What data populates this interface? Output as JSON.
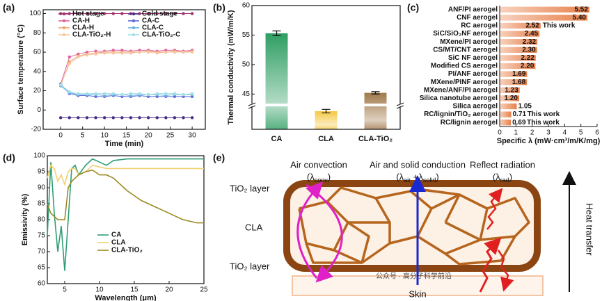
{
  "panel_labels": [
    "(a)",
    "(b)",
    "(c)",
    "(d)",
    "(e)"
  ],
  "chart_data": [
    {
      "type": "line",
      "x_label": "Time (min)",
      "y_label": "Surface temperature (°C)",
      "xlim": [
        -4,
        33
      ],
      "ylim": [
        -20,
        104
      ],
      "xticks": [
        0,
        5,
        10,
        15,
        20,
        25,
        30
      ],
      "yticks": [
        -20,
        0,
        20,
        40,
        60,
        80,
        100
      ],
      "markers": true,
      "legend": "upper center",
      "legend_columns": 2,
      "x": [
        0,
        2,
        4,
        6,
        8,
        10,
        12,
        14,
        16,
        18,
        20,
        22,
        24,
        26,
        28,
        30
      ],
      "series": [
        {
          "name": "Hot stage",
          "color": "#a3306f",
          "values": [
            100,
            100,
            100,
            100,
            100,
            100,
            100,
            100,
            100,
            100,
            100,
            100,
            100,
            100,
            100,
            100
          ]
        },
        {
          "name": "Cold stage",
          "color": "#4b2a8a",
          "values": [
            -8,
            -8,
            -8,
            -8,
            -8,
            -8,
            -8,
            -8,
            -8,
            -8,
            -8,
            -8,
            -8,
            -8,
            -8,
            -8
          ]
        },
        {
          "name": "CA-H",
          "color": "#e0609c",
          "values": [
            27,
            55,
            58,
            60,
            61,
            61,
            62,
            62,
            61,
            62,
            62,
            61,
            62,
            62,
            61,
            62
          ]
        },
        {
          "name": "CA-C",
          "color": "#5b6bd6",
          "values": [
            27,
            17,
            15,
            15,
            14,
            14,
            15,
            14,
            14,
            15,
            14,
            14,
            14,
            14,
            14,
            14
          ]
        },
        {
          "name": "CLA-H",
          "color": "#f0a070",
          "values": [
            25,
            50,
            56,
            58,
            59,
            60,
            60,
            60,
            60,
            60,
            61,
            60,
            60,
            61,
            60,
            61
          ]
        },
        {
          "name": "CLA-C",
          "color": "#6ab0e0",
          "values": [
            25,
            18,
            16,
            16,
            16,
            15,
            16,
            16,
            15,
            16,
            16,
            16,
            15,
            16,
            16,
            16
          ]
        },
        {
          "name": "CLA-TiO₂-H",
          "color": "#f5c8a0",
          "values": [
            26,
            48,
            55,
            57,
            58,
            59,
            59,
            59,
            59,
            60,
            60,
            59,
            60,
            60,
            60,
            60
          ]
        },
        {
          "name": "CLA-TiO₂-C",
          "color": "#a0e0e8",
          "values": [
            26,
            19,
            17,
            17,
            17,
            17,
            17,
            16,
            17,
            17,
            16,
            17,
            17,
            17,
            16,
            17
          ]
        }
      ]
    },
    {
      "type": "bar",
      "y_label": "Thermal conductivity (mW/m/K)",
      "ylim": [
        43.5,
        60
      ],
      "yticks": [
        45,
        50,
        55,
        60
      ],
      "axis_break": true,
      "categories": [
        "CA",
        "CLA",
        "CLA-TiO₂"
      ],
      "values": [
        55.3,
        42.1,
        45.2
      ],
      "errors": [
        0.4,
        0.3,
        0.2
      ],
      "colors": [
        "#2e9e62",
        "#f5c842",
        "#a0784a"
      ]
    },
    {
      "type": "hbar",
      "x_label": "Specific λ (mW·cm³/m/K/mg)",
      "xlim": [
        0,
        6
      ],
      "xticks": [
        0,
        1,
        2,
        3,
        4,
        5,
        6
      ],
      "color": "#e8804a",
      "categories": [
        "ANF/PI aerogel",
        "CNF aerogel",
        "RC aerogel",
        "SiC/SiO₂NF aerogel",
        "MXene/PI aerogel",
        "CS/MT/CNT aerogel",
        "SiC NF aerogel",
        "Modified CS aerogel",
        "PI/ANF aerogel",
        "MXene/PINF aerogel",
        "MXene/ANF/PI aerogel",
        "Silica nanotube aerogel",
        "Silica aerogel",
        "RC/lignin/TiO₂ aerogel",
        "RC/lignin aerogel"
      ],
      "values": [
        5.52,
        5.4,
        2.52,
        2.45,
        2.32,
        2.3,
        2.22,
        2.2,
        1.69,
        1.68,
        1.23,
        1.2,
        1.05,
        0.71,
        0.69
      ],
      "value_labels": [
        "5.52",
        "5.40",
        "2.52",
        "2.45",
        "2.32",
        "2.30",
        "2.22",
        "2.20",
        "1.69",
        "1.68",
        "1.23",
        "1.20",
        "1.05",
        "0.71",
        "0.69"
      ],
      "annotations": [
        null,
        null,
        "This work",
        null,
        null,
        null,
        null,
        null,
        null,
        null,
        null,
        null,
        null,
        "This work",
        "This work"
      ]
    },
    {
      "type": "line",
      "x_label": "Wavelength (μm)",
      "y_label": "Emissivity (%)",
      "xlim": [
        2.5,
        25
      ],
      "ylim": [
        60,
        100
      ],
      "xticks": [
        5,
        10,
        15,
        20,
        25
      ],
      "yticks": [
        60,
        65,
        70,
        75,
        80,
        85,
        90,
        95,
        100
      ],
      "legend": "lower left",
      "x": [
        2.5,
        3,
        3.5,
        4,
        4.5,
        5,
        5.5,
        6,
        6.5,
        7,
        8,
        9,
        10,
        11,
        12,
        14,
        16,
        18,
        20,
        22,
        24,
        25
      ],
      "series": [
        {
          "name": "CA",
          "color": "#2e9e74",
          "values": [
            75,
            98,
            82,
            70,
            78,
            64,
            80,
            96,
            97,
            94,
            97,
            99,
            98,
            97,
            98.5,
            99,
            99,
            99,
            99,
            99,
            99,
            99
          ]
        },
        {
          "name": "CLA",
          "color": "#f2d070",
          "values": [
            93,
            97,
            96,
            92,
            94,
            91,
            95,
            96,
            96,
            94,
            95,
            97,
            96.5,
            96,
            96,
            96,
            96,
            96,
            96,
            96,
            96,
            96
          ]
        },
        {
          "name": "CLA-TiO₂",
          "color": "#9a8a20",
          "values": [
            85,
            82,
            81,
            80,
            80,
            80,
            90,
            92,
            93,
            94,
            95,
            95.5,
            94,
            94,
            93,
            89,
            86,
            84,
            82,
            80,
            79,
            79
          ]
        }
      ]
    }
  ],
  "diagram": {
    "convection": {
      "title": "Air convection",
      "formula": [
        "(λ",
        "conv",
        ")"
      ]
    },
    "conduction": {
      "title": "Air and solid conduction",
      "formula": [
        "(λ",
        "air",
        " +λ",
        "solid",
        ")"
      ]
    },
    "radiation": {
      "title": "Reflect radiation",
      "formula": [
        "(λ",
        "rad",
        ")"
      ]
    },
    "top_layer": "TiO₂ layer",
    "middle_layer": "CLA",
    "bottom_layer": "TiO₂ layer",
    "skin": "Skin",
    "heat_transfer": "Heat transfer"
  },
  "watermark": "公众号 · 高分子科学前沿"
}
